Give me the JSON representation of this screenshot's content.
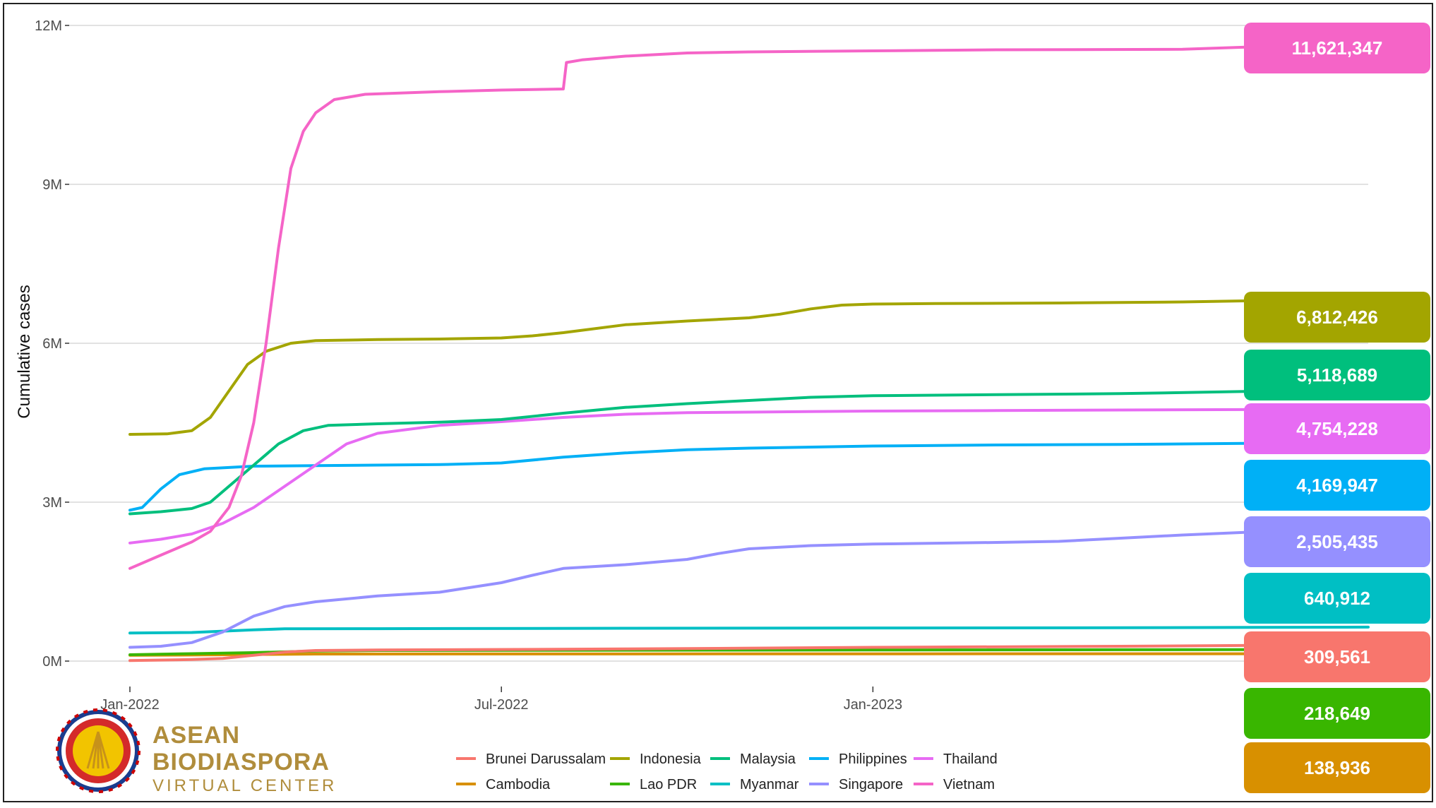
{
  "chart_data": {
    "type": "line",
    "ylabel": "Cumulative cases",
    "xlabel": "",
    "title": "",
    "ylim": [
      0,
      12000000
    ],
    "y_ticks": [
      {
        "value": 0,
        "label": "0M"
      },
      {
        "value": 3000000,
        "label": "3M"
      },
      {
        "value": 6000000,
        "label": "6M"
      },
      {
        "value": 9000000,
        "label": "9M"
      },
      {
        "value": 12000000,
        "label": "12M"
      }
    ],
    "x_ticks": [
      {
        "value": 0,
        "label": "Jan-2022"
      },
      {
        "value": 6,
        "label": "Jul-2022"
      },
      {
        "value": 12,
        "label": "Jan-2023"
      }
    ],
    "x_range": [
      0,
      20
    ],
    "grid": "horizontal",
    "legend_position": "bottom",
    "series": [
      {
        "name": "Vietnam",
        "color": "#f564c7",
        "end_label": "11,621,347",
        "points": [
          [
            0,
            1750000
          ],
          [
            0.5,
            2000000
          ],
          [
            1,
            2250000
          ],
          [
            1.3,
            2450000
          ],
          [
            1.6,
            2900000
          ],
          [
            1.8,
            3500000
          ],
          [
            2.0,
            4500000
          ],
          [
            2.2,
            6000000
          ],
          [
            2.4,
            7800000
          ],
          [
            2.6,
            9300000
          ],
          [
            2.8,
            10000000
          ],
          [
            3.0,
            10350000
          ],
          [
            3.3,
            10600000
          ],
          [
            3.8,
            10700000
          ],
          [
            5,
            10750000
          ],
          [
            6,
            10780000
          ],
          [
            7.0,
            10800000
          ],
          [
            7.05,
            11300000
          ],
          [
            7.3,
            11350000
          ],
          [
            8,
            11420000
          ],
          [
            9,
            11480000
          ],
          [
            10,
            11500000
          ],
          [
            12,
            11520000
          ],
          [
            14,
            11540000
          ],
          [
            17,
            11550000
          ],
          [
            18.5,
            11610000
          ],
          [
            20,
            11621347
          ]
        ]
      },
      {
        "name": "Indonesia",
        "color": "#a3a500",
        "end_label": "6,812,426",
        "points": [
          [
            0,
            4280000
          ],
          [
            0.6,
            4290000
          ],
          [
            1.0,
            4350000
          ],
          [
            1.3,
            4600000
          ],
          [
            1.6,
            5100000
          ],
          [
            1.9,
            5600000
          ],
          [
            2.2,
            5850000
          ],
          [
            2.6,
            6000000
          ],
          [
            3,
            6050000
          ],
          [
            4,
            6070000
          ],
          [
            5,
            6080000
          ],
          [
            6,
            6100000
          ],
          [
            6.5,
            6140000
          ],
          [
            7,
            6200000
          ],
          [
            8,
            6350000
          ],
          [
            9,
            6420000
          ],
          [
            10,
            6480000
          ],
          [
            10.5,
            6550000
          ],
          [
            11,
            6650000
          ],
          [
            11.5,
            6720000
          ],
          [
            12,
            6740000
          ],
          [
            13,
            6750000
          ],
          [
            15,
            6760000
          ],
          [
            17,
            6780000
          ],
          [
            18,
            6800000
          ],
          [
            20,
            6812426
          ]
        ]
      },
      {
        "name": "Malaysia",
        "color": "#00bf7d",
        "end_label": "5,118,689",
        "points": [
          [
            0,
            2780000
          ],
          [
            0.5,
            2820000
          ],
          [
            1.0,
            2880000
          ],
          [
            1.3,
            3000000
          ],
          [
            1.6,
            3300000
          ],
          [
            2.0,
            3700000
          ],
          [
            2.4,
            4100000
          ],
          [
            2.8,
            4350000
          ],
          [
            3.2,
            4450000
          ],
          [
            4,
            4480000
          ],
          [
            5,
            4510000
          ],
          [
            6,
            4560000
          ],
          [
            7,
            4680000
          ],
          [
            8,
            4790000
          ],
          [
            9,
            4860000
          ],
          [
            10,
            4920000
          ],
          [
            11,
            4980000
          ],
          [
            12,
            5010000
          ],
          [
            14,
            5030000
          ],
          [
            16,
            5050000
          ],
          [
            18,
            5090000
          ],
          [
            20,
            5118689
          ]
        ]
      },
      {
        "name": "Thailand",
        "color": "#e76bf3",
        "end_label": "4,754,228",
        "points": [
          [
            0,
            2230000
          ],
          [
            0.5,
            2300000
          ],
          [
            1.0,
            2400000
          ],
          [
            1.5,
            2600000
          ],
          [
            2.0,
            2900000
          ],
          [
            2.5,
            3300000
          ],
          [
            3.0,
            3700000
          ],
          [
            3.5,
            4100000
          ],
          [
            4,
            4300000
          ],
          [
            5,
            4450000
          ],
          [
            6,
            4520000
          ],
          [
            7,
            4600000
          ],
          [
            8,
            4660000
          ],
          [
            9,
            4690000
          ],
          [
            10,
            4700000
          ],
          [
            12,
            4720000
          ],
          [
            14,
            4730000
          ],
          [
            16,
            4740000
          ],
          [
            18,
            4748000
          ],
          [
            20,
            4754228
          ]
        ]
      },
      {
        "name": "Philippines",
        "color": "#00b0f6",
        "end_label": "4,169,947",
        "points": [
          [
            0,
            2850000
          ],
          [
            0.2,
            2900000
          ],
          [
            0.5,
            3250000
          ],
          [
            0.8,
            3520000
          ],
          [
            1.2,
            3630000
          ],
          [
            2,
            3680000
          ],
          [
            3,
            3690000
          ],
          [
            4,
            3700000
          ],
          [
            5,
            3710000
          ],
          [
            6,
            3740000
          ],
          [
            7,
            3850000
          ],
          [
            8,
            3930000
          ],
          [
            9,
            3990000
          ],
          [
            10,
            4020000
          ],
          [
            12,
            4060000
          ],
          [
            14,
            4080000
          ],
          [
            16,
            4090000
          ],
          [
            18,
            4110000
          ],
          [
            20,
            4169947
          ]
        ]
      },
      {
        "name": "Singapore",
        "color": "#9590ff",
        "end_label": "2,505,435",
        "points": [
          [
            0,
            260000
          ],
          [
            0.5,
            280000
          ],
          [
            1.0,
            350000
          ],
          [
            1.5,
            550000
          ],
          [
            2.0,
            850000
          ],
          [
            2.5,
            1030000
          ],
          [
            3.0,
            1120000
          ],
          [
            4,
            1230000
          ],
          [
            5,
            1300000
          ],
          [
            6,
            1480000
          ],
          [
            6.5,
            1620000
          ],
          [
            7,
            1750000
          ],
          [
            8,
            1820000
          ],
          [
            9,
            1920000
          ],
          [
            9.5,
            2030000
          ],
          [
            10,
            2120000
          ],
          [
            11,
            2180000
          ],
          [
            12,
            2210000
          ],
          [
            14,
            2240000
          ],
          [
            15,
            2260000
          ],
          [
            16,
            2320000
          ],
          [
            17,
            2380000
          ],
          [
            18,
            2430000
          ],
          [
            19,
            2490000
          ],
          [
            20,
            2505435
          ]
        ]
      },
      {
        "name": "Myanmar",
        "color": "#00bfc4",
        "end_label": "640,912",
        "points": [
          [
            0,
            530000
          ],
          [
            1,
            540000
          ],
          [
            2,
            590000
          ],
          [
            2.5,
            610000
          ],
          [
            4,
            612000
          ],
          [
            8,
            620000
          ],
          [
            12,
            625000
          ],
          [
            16,
            630000
          ],
          [
            20,
            640912
          ]
        ]
      },
      {
        "name": "Brunei Darussalam",
        "color": "#f8766d",
        "end_label": "309,561",
        "points": [
          [
            0,
            10000
          ],
          [
            1,
            30000
          ],
          [
            1.5,
            50000
          ],
          [
            2,
            110000
          ],
          [
            2.5,
            170000
          ],
          [
            3,
            200000
          ],
          [
            4,
            210000
          ],
          [
            8,
            230000
          ],
          [
            12,
            260000
          ],
          [
            16,
            280000
          ],
          [
            20,
            309561
          ]
        ]
      },
      {
        "name": "Lao PDR",
        "color": "#39b600",
        "end_label": "218,649",
        "points": [
          [
            0,
            120000
          ],
          [
            1,
            140000
          ],
          [
            2,
            160000
          ],
          [
            3,
            190000
          ],
          [
            4,
            200000
          ],
          [
            8,
            205000
          ],
          [
            12,
            210000
          ],
          [
            16,
            215000
          ],
          [
            20,
            218649
          ]
        ]
      },
      {
        "name": "Cambodia",
        "color": "#d89000",
        "end_label": "138,936",
        "points": [
          [
            0,
            110000
          ],
          [
            1,
            115000
          ],
          [
            2,
            125000
          ],
          [
            3,
            133000
          ],
          [
            6,
            135000
          ],
          [
            12,
            137000
          ],
          [
            20,
            138936
          ]
        ]
      }
    ],
    "legend_order": [
      "Brunei Darussalam",
      "Indonesia",
      "Malaysia",
      "Philippines",
      "Thailand",
      "Cambodia",
      "Lao PDR",
      "Myanmar",
      "Singapore",
      "Vietnam"
    ],
    "end_label_order": [
      "Vietnam",
      "Indonesia",
      "Malaysia",
      "Thailand",
      "Philippines",
      "Singapore",
      "Myanmar",
      "Brunei Darussalam",
      "Lao PDR",
      "Cambodia"
    ]
  },
  "logo": {
    "line1": "ASEAN",
    "line2": "BIODIASPORA",
    "line3": "VIRTUAL CENTER"
  }
}
